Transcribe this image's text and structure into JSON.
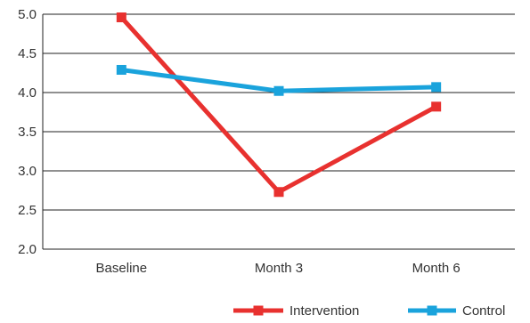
{
  "chart_data": {
    "type": "line",
    "categories": [
      "Baseline",
      "Month 3",
      "Month 6"
    ],
    "ylim": [
      2.0,
      5.0
    ],
    "yticks": [
      "2.0",
      "2.5",
      "3.0",
      "3.5",
      "4.0",
      "4.5",
      "5.0"
    ],
    "grid": "horizontal",
    "legend_position": "bottom-right",
    "series": [
      {
        "name": "Intervention",
        "values": [
          4.96,
          2.73,
          3.82
        ],
        "color": "#e8312f",
        "marker": "square"
      },
      {
        "name": "Control",
        "values": [
          4.29,
          4.02,
          4.07
        ],
        "color": "#1aa3dc",
        "marker": "square"
      }
    ]
  }
}
